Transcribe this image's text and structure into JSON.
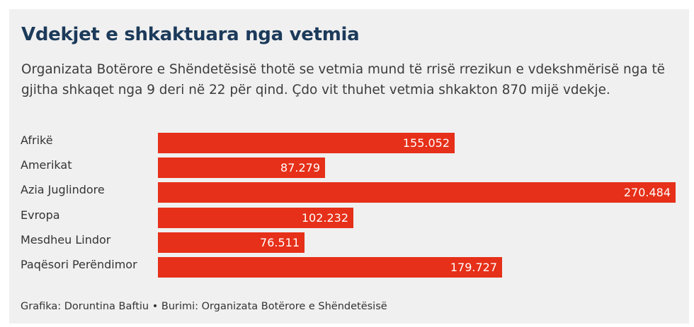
{
  "chart_data": {
    "type": "bar",
    "orientation": "horizontal",
    "title": "Vdekjet e shkaktuara nga vetmia",
    "subtitle": "Organizata Botërore e Shëndetësisë thotë se vetmia mund të rrisë rrezikun e vdekshmërisë nga të gjitha shkaqet nga 9 deri në 22 për qind. Çdo vit thuhet vetmia shkakton 870 mijë vdekje.",
    "categories": [
      "Afrikë",
      "Amerikat",
      "Azia Juglindore",
      "Evropa",
      "Mesdheu Lindor",
      "Paqësori Perëndimor"
    ],
    "values": [
      155052,
      87279,
      270484,
      102232,
      76511,
      179727
    ],
    "value_labels": [
      "155.052",
      "87.279",
      "270.484",
      "102.232",
      "76.511",
      "179.727"
    ],
    "xlim": [
      0,
      270484
    ],
    "grid": false,
    "bar_color": "#e63019",
    "footer": "Grafika: Doruntina Baftiu • Burimi: Organizata Botërore e Shëndetësisë"
  }
}
